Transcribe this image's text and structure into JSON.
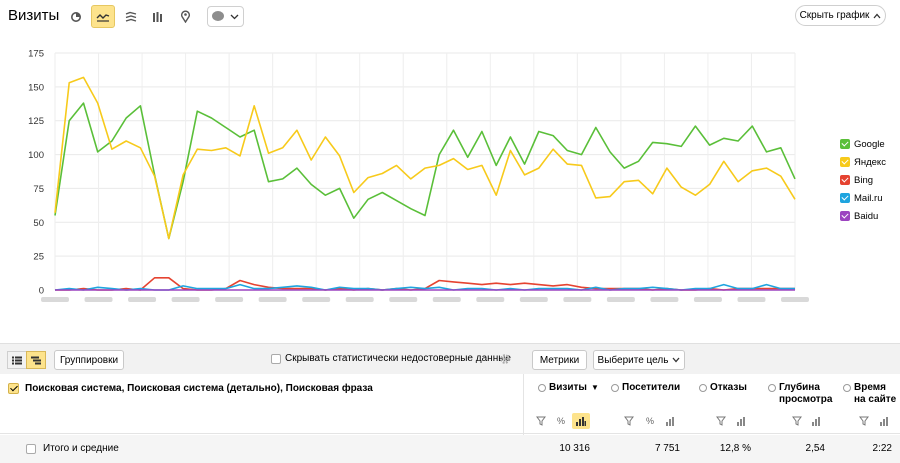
{
  "header": {
    "title": "Визиты",
    "hide_chart_label": "Скрыть график"
  },
  "chart_data": {
    "type": "line",
    "ylim": [
      0,
      175
    ],
    "yticks": [
      "175",
      "150",
      "125",
      "100",
      "75",
      "50",
      "25",
      "0"
    ],
    "xtick_count": 18,
    "legend_position": "right",
    "grid": true,
    "series": [
      {
        "name": "Google",
        "color": "#5abf39",
        "values": [
          55,
          125,
          138,
          102,
          110,
          127,
          136,
          85,
          38,
          80,
          132,
          127,
          120,
          113,
          118,
          80,
          82,
          90,
          78,
          70,
          75,
          53,
          67,
          72,
          66,
          60,
          55,
          100,
          118,
          98,
          117,
          92,
          113,
          93,
          117,
          114,
          103,
          100,
          120,
          102,
          90,
          95,
          109,
          108,
          106,
          121,
          107,
          112,
          110,
          121,
          102,
          105,
          82
        ]
      },
      {
        "name": "Яндекс",
        "color": "#f7ca1b",
        "values": [
          57,
          153,
          157,
          138,
          104,
          110,
          105,
          84,
          38,
          85,
          104,
          103,
          105,
          99,
          136,
          101,
          105,
          118,
          96,
          113,
          99,
          72,
          83,
          86,
          92,
          82,
          90,
          92,
          97,
          89,
          92,
          70,
          103,
          85,
          90,
          104,
          93,
          92,
          68,
          69,
          80,
          81,
          71,
          90,
          76,
          70,
          78,
          95,
          80,
          88,
          90,
          84,
          67
        ]
      },
      {
        "name": "Bing",
        "color": "#e54331",
        "values": [
          0,
          0,
          1,
          0,
          0,
          1,
          0,
          9,
          9,
          1,
          0,
          0,
          1,
          7,
          4,
          2,
          1,
          1,
          1,
          0,
          1,
          0,
          1,
          0,
          1,
          0,
          1,
          7,
          6,
          5,
          4,
          5,
          4,
          5,
          4,
          3,
          4,
          2,
          1,
          1,
          1,
          1,
          0,
          1,
          0,
          0,
          1,
          0,
          1,
          1,
          1,
          1,
          1
        ]
      },
      {
        "name": "Mail.ru",
        "color": "#1ea4df",
        "values": [
          0,
          1,
          0,
          2,
          1,
          0,
          1,
          0,
          0,
          3,
          1,
          1,
          1,
          4,
          1,
          1,
          2,
          3,
          2,
          0,
          2,
          1,
          1,
          0,
          1,
          2,
          1,
          2,
          0,
          1,
          1,
          0,
          1,
          0,
          1,
          1,
          1,
          0,
          2,
          0,
          1,
          1,
          2,
          1,
          0,
          1,
          1,
          4,
          1,
          1,
          4,
          1,
          1
        ]
      },
      {
        "name": "Baidu",
        "color": "#9c44c0",
        "values": [
          0,
          0,
          0,
          0,
          0,
          0,
          0,
          0,
          0,
          0,
          0,
          0,
          0,
          0,
          0,
          0,
          0,
          0,
          0,
          0,
          0,
          0,
          0,
          0,
          0,
          0,
          0,
          0,
          0,
          0,
          0,
          0,
          0,
          0,
          0,
          0,
          0,
          0,
          0,
          0,
          0,
          0,
          0,
          0,
          0,
          0,
          0,
          0,
          0,
          0,
          0,
          0,
          0
        ]
      }
    ]
  },
  "toolbar": {
    "groupings_label": "Группировки",
    "hide_unreliable_label": "Скрывать статистически недостоверные данные",
    "metrics_label": "Метрики",
    "goal_label": "Выберите цель"
  },
  "table": {
    "dimension_header": "Поисковая система, Поисковая система (детально), Поисковая фраза",
    "columns": [
      {
        "label": "Визиты",
        "sort": "▼"
      },
      {
        "label": "Посетители"
      },
      {
        "label": "Отказы"
      },
      {
        "label": "Глубина просмотра"
      },
      {
        "label": "Время на сайте"
      }
    ],
    "totals": {
      "label": "Итого и средние",
      "visits": "10 316",
      "visitors": "7 751",
      "bounce": "12,8 %",
      "depth": "2,54",
      "time": "2:22"
    }
  },
  "colors": {
    "accent": "#fde38c"
  }
}
